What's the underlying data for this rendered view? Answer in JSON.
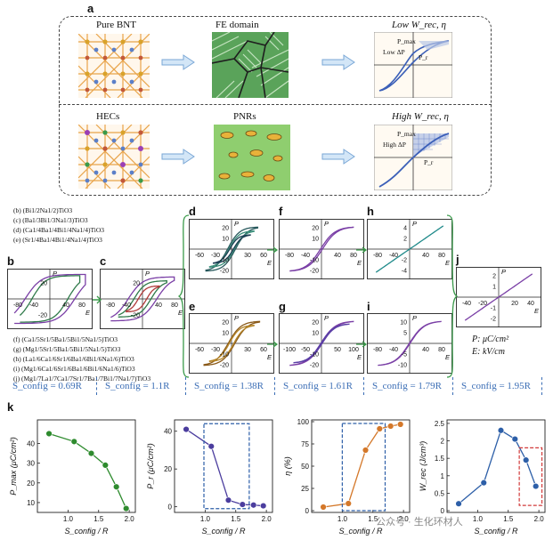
{
  "panel_a": {
    "letter": "a",
    "row1": {
      "left": "Pure BNT",
      "mid": "FE domain",
      "right": "Low W_rec, η",
      "pmax": "P_max",
      "dp": "Low ΔP",
      "pr": "P_r"
    },
    "row2": {
      "left": "HECs",
      "mid": "PNRs",
      "right": "High W_rec, η",
      "pmax": "P_max",
      "dp": "High ΔP",
      "pr": "P_r"
    }
  },
  "legend_top": [
    "(b) (Bi1/2Na1/2)TiO3",
    "(c) (Ba1/3Bi1/3Na1/3)TiO3",
    "(d) (Ca1/4Ba1/4Bi1/4Na1/4)TiO3",
    "(e) (Sr1/4Ba1/4Bi1/4Na1/4)TiO3"
  ],
  "legend_bottom": [
    "(f) (Ca1/5Sr1/5Ba1/5Bi1/5Na1/5)TiO3",
    "(g) (Mg1/5Sr1/5Ba1/5Bi1/5Na1/5)TiO3",
    "(h) (La1/6Ca1/6Sr1/6Ba1/6Bi1/6Na1/6)TiO3",
    "(i) (Mg1/6Ca1/6Sr1/6Ba1/6Bi1/6Na1/6)TiO3",
    "(j) (Mg1/7La1/7Ca1/7Sr1/7Ba1/7Bi1/7Na1/7)TiO3"
  ],
  "units": {
    "p": "P: μC/cm²",
    "e": "E: kV/cm"
  },
  "sconfig": [
    "S_config = 0.69R",
    "S_config = 1.1R",
    "S_config = 1.38R",
    "S_config = 1.61R",
    "S_config = 1.79R",
    "S_config = 1.95R"
  ],
  "loops": {
    "b": {
      "letter": "b",
      "xt": [
        "-80",
        "-40",
        "40",
        "80"
      ],
      "yt": [
        "20",
        "-20"
      ],
      "axis": "E",
      "pa": "P"
    },
    "c": {
      "letter": "c",
      "xt": [
        "-80",
        "-40",
        "40",
        "80"
      ],
      "yt": [
        "20",
        "-20"
      ],
      "axis": "E",
      "pa": "P"
    },
    "d": {
      "letter": "d",
      "xt": [
        "-60",
        "-30",
        "30",
        "60"
      ],
      "yt": [
        "20",
        "10",
        "-10",
        "-20"
      ],
      "axis": "E",
      "pa": "P"
    },
    "e": {
      "letter": "e",
      "xt": [
        "-60",
        "-30",
        "30",
        "60"
      ],
      "yt": [
        "20",
        "10",
        "-10",
        "-20"
      ],
      "axis": "E",
      "pa": "P"
    },
    "f": {
      "letter": "f",
      "xt": [
        "-80",
        "-40",
        "40",
        "80"
      ],
      "yt": [
        "20",
        "10",
        "-10",
        "-20"
      ],
      "axis": "E",
      "pa": "P"
    },
    "g": {
      "letter": "g",
      "xt": [
        "-100",
        "-50",
        "50",
        "100"
      ],
      "yt": [
        "20",
        "10",
        "-10",
        "-20"
      ],
      "axis": "E",
      "pa": "P"
    },
    "h": {
      "letter": "h",
      "xt": [
        "-80",
        "-40",
        "40",
        "80"
      ],
      "yt": [
        "4",
        "2",
        "-2",
        "-4"
      ],
      "axis": "E",
      "pa": "P"
    },
    "i": {
      "letter": "i",
      "xt": [
        "-80",
        "-40",
        "40",
        "80"
      ],
      "yt": [
        "10",
        "5",
        "-5",
        "-10"
      ],
      "axis": "E",
      "pa": "P"
    },
    "j": {
      "letter": "j",
      "xt": [
        "-40",
        "-20",
        "20",
        "40"
      ],
      "yt": [
        "2",
        "1",
        "-1",
        "-2"
      ],
      "axis": "E",
      "pa": "P"
    }
  },
  "panel_k_letter": "k",
  "watermark": "公众号 · 生化环材人",
  "chart_data": [
    {
      "type": "line",
      "xlabel": "S_config / R",
      "ylabel": "P_max (μC/cm²)",
      "x": [
        0.69,
        1.1,
        1.38,
        1.61,
        1.79,
        1.95
      ],
      "values": [
        45,
        41,
        35,
        29,
        18,
        7
      ],
      "xlim": [
        0.5,
        2.1
      ],
      "ylim": [
        5,
        52
      ],
      "yticks": [
        10,
        20,
        30,
        40
      ],
      "color": "#2e8b2e"
    },
    {
      "type": "line",
      "xlabel": "S_config / R",
      "ylabel": "P_r (μC/cm²)",
      "x": [
        0.69,
        1.1,
        1.38,
        1.61,
        1.79,
        1.95
      ],
      "values": [
        41,
        32,
        3.5,
        1.2,
        0.9,
        0.5
      ],
      "xlim": [
        0.5,
        2.1
      ],
      "ylim": [
        -3,
        46
      ],
      "yticks": [
        0,
        20,
        40
      ],
      "color": "#4b3d9e"
    },
    {
      "type": "line",
      "xlabel": "S_config / R",
      "ylabel": "η (%)",
      "x": [
        0.69,
        1.1,
        1.38,
        1.61,
        1.79,
        1.95
      ],
      "values": [
        4,
        8,
        68,
        92,
        95,
        97
      ],
      "xlim": [
        0.5,
        2.1
      ],
      "ylim": [
        -2,
        102
      ],
      "yticks": [
        0,
        25,
        50,
        75,
        100
      ],
      "color": "#d4782a"
    },
    {
      "type": "line",
      "xlabel": "S_config / R",
      "ylabel": "W_rec (J/cm³)",
      "x": [
        0.69,
        1.1,
        1.38,
        1.61,
        1.79,
        1.95
      ],
      "values": [
        0.2,
        0.8,
        2.3,
        2.05,
        1.45,
        0.7
      ],
      "xlim": [
        0.5,
        2.1
      ],
      "ylim": [
        -0.05,
        2.6
      ],
      "yticks": [
        0.0,
        0.5,
        1.0,
        1.5,
        2.0,
        2.5
      ],
      "color": "#2d5fa8"
    }
  ]
}
